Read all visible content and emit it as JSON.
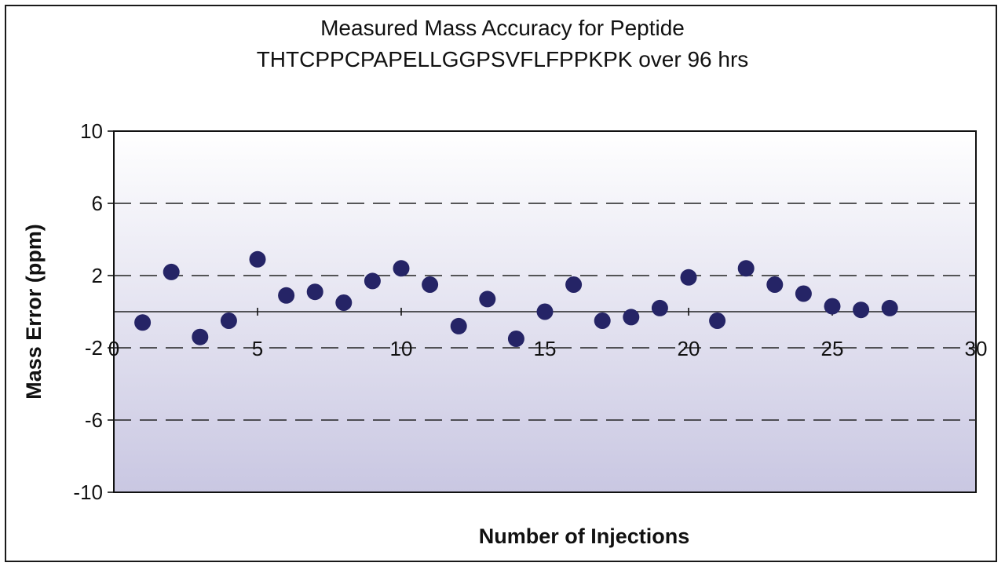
{
  "chart_data": {
    "type": "scatter",
    "title_line_1": "Measured Mass Accuracy for Peptide",
    "title_line_2": "THTCPPCPAPELLGGPSVFLFPPKPK over 96 hrs",
    "xlabel": "Number of Injections",
    "ylabel": "Mass Error (ppm)",
    "xlim": [
      0,
      30
    ],
    "ylim": [
      -10,
      10
    ],
    "x_ticks": [
      0,
      5,
      10,
      15,
      20,
      25,
      30
    ],
    "y_ticks": [
      10,
      6,
      2,
      -2,
      -6,
      -10
    ],
    "y_tick_labels": [
      "10",
      "6",
      "2",
      "-2",
      "-6",
      "-10"
    ],
    "dashed_gridlines_at": [
      6,
      2,
      -2,
      -6
    ],
    "zero_line": 0,
    "x_axis_crosses_at": 0,
    "marker_color": "#252466",
    "background_gradient": [
      "#ffffff",
      "#c9c7e2"
    ],
    "points": [
      {
        "x": 1,
        "y": -0.6
      },
      {
        "x": 2,
        "y": 2.2
      },
      {
        "x": 3,
        "y": -1.4
      },
      {
        "x": 4,
        "y": -0.5
      },
      {
        "x": 5,
        "y": 2.9
      },
      {
        "x": 6,
        "y": 0.9
      },
      {
        "x": 7,
        "y": 1.1
      },
      {
        "x": 8,
        "y": 0.5
      },
      {
        "x": 9,
        "y": 1.7
      },
      {
        "x": 10,
        "y": 2.4
      },
      {
        "x": 11,
        "y": 1.5
      },
      {
        "x": 12,
        "y": -0.8
      },
      {
        "x": 13,
        "y": 0.7
      },
      {
        "x": 14,
        "y": -1.5
      },
      {
        "x": 15,
        "y": 0.0
      },
      {
        "x": 16,
        "y": 1.5
      },
      {
        "x": 17,
        "y": -0.5
      },
      {
        "x": 18,
        "y": -0.3
      },
      {
        "x": 19,
        "y": 0.2
      },
      {
        "x": 20,
        "y": 1.9
      },
      {
        "x": 21,
        "y": -0.5
      },
      {
        "x": 22,
        "y": 2.4
      },
      {
        "x": 23,
        "y": 1.5
      },
      {
        "x": 24,
        "y": 1.0
      },
      {
        "x": 25,
        "y": 0.3
      },
      {
        "x": 26,
        "y": 0.1
      },
      {
        "x": 27,
        "y": 0.2
      }
    ]
  }
}
